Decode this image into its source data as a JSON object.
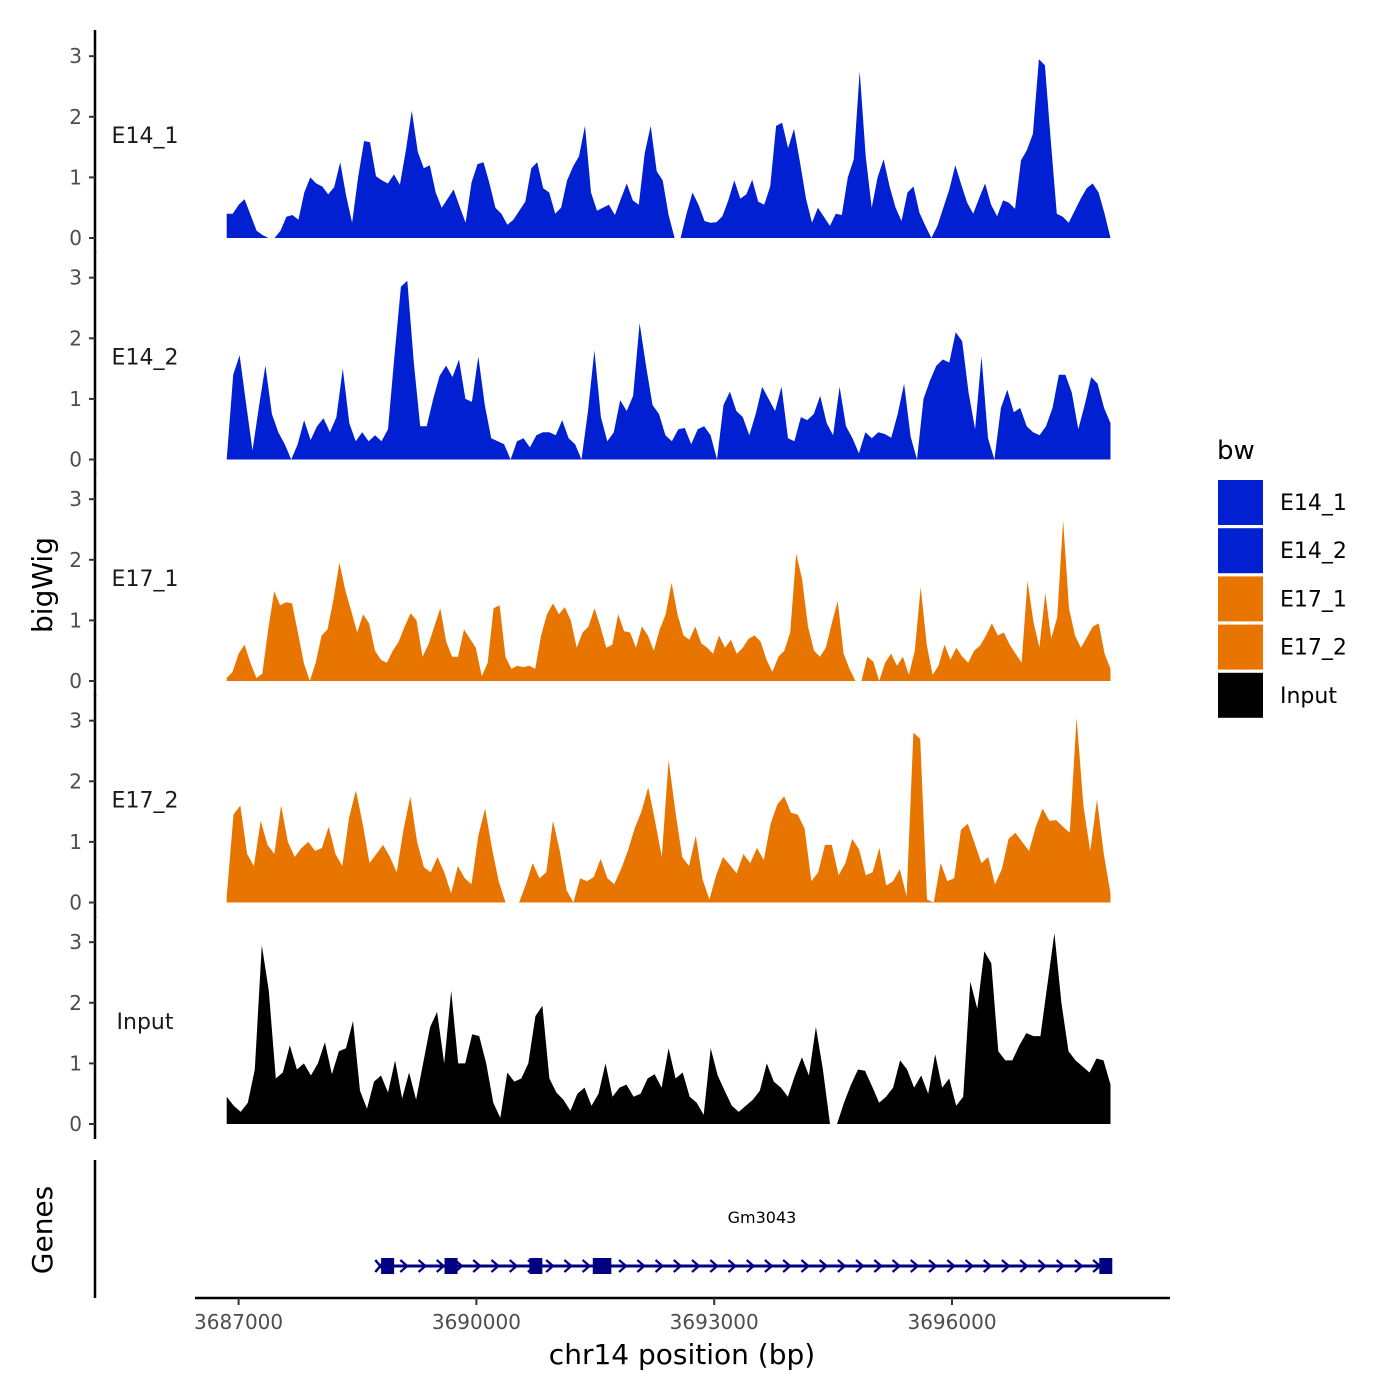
{
  "chart_data": {
    "type": "area",
    "title": "",
    "ylabel": "bigWig",
    "xlabel": "chr14 position (bp)",
    "ylim": [
      0,
      3.3
    ],
    "yticks": [
      0,
      1,
      2,
      3
    ],
    "xlim": [
      3686450,
      3698750
    ],
    "xticks": [
      3687000,
      3690000,
      3693000,
      3696000
    ],
    "x_start": 3686850,
    "x_end": 3698000,
    "legend": {
      "title": "bw",
      "position": "right",
      "entries": [
        {
          "label": "E14_1",
          "color": "#0020D2"
        },
        {
          "label": "E14_2",
          "color": "#0020D2"
        },
        {
          "label": "E17_1",
          "color": "#E87500"
        },
        {
          "label": "E17_2",
          "color": "#E87500"
        },
        {
          "label": "Input",
          "color": "#000000"
        }
      ]
    },
    "series": [
      {
        "name": "E14_1",
        "color": "#0020D2",
        "values": [
          0.4,
          0.4,
          0.55,
          0.64,
          0.38,
          0.12,
          0.05,
          0,
          0,
          0.12,
          0.35,
          0.38,
          0.3,
          0.75,
          1.0,
          0.9,
          0.85,
          0.72,
          0.84,
          1.25,
          0.7,
          0.25,
          1.0,
          1.6,
          1.58,
          1.02,
          0.95,
          0.9,
          1.05,
          0.88,
          1.45,
          2.1,
          1.42,
          1.15,
          1.2,
          0.75,
          0.5,
          0.65,
          0.8,
          0.52,
          0.25,
          0.92,
          1.22,
          1.25,
          0.9,
          0.5,
          0.4,
          0.22,
          0.3,
          0.45,
          0.6,
          1.15,
          1.25,
          0.82,
          0.75,
          0.4,
          0.5,
          0.95,
          1.18,
          1.35,
          1.85,
          0.75,
          0.45,
          0.5,
          0.55,
          0.38,
          0.65,
          0.9,
          0.62,
          0.55,
          1.4,
          1.85,
          1.1,
          0.95,
          0.38,
          0,
          0,
          0.4,
          0.75,
          0.55,
          0.28,
          0.25,
          0.26,
          0.36,
          0.62,
          0.95,
          0.65,
          0.72,
          0.96,
          0.6,
          0.55,
          0.85,
          1.85,
          1.9,
          1.48,
          1.8,
          1.25,
          0.65,
          0.25,
          0.5,
          0.35,
          0.2,
          0.4,
          0.38,
          1.0,
          1.3,
          2.75,
          1.35,
          0.5,
          1.0,
          1.3,
          0.85,
          0.5,
          0.28,
          0.75,
          0.85,
          0.42,
          0.2,
          0,
          0.2,
          0.5,
          0.8,
          1.2,
          0.88,
          0.58,
          0.4,
          0.66,
          0.9,
          0.55,
          0.36,
          0.62,
          0.58,
          0.48,
          1.28,
          1.45,
          1.72,
          2.95,
          2.85,
          1.6,
          0.4,
          0.35,
          0.25,
          0.45,
          0.65,
          0.82,
          0.9,
          0.75,
          0.4,
          0
        ]
      },
      {
        "name": "E14_2",
        "color": "#0020D2",
        "values": [
          0,
          1.4,
          1.72,
          0.92,
          0.15,
          0.88,
          1.55,
          0.75,
          0.45,
          0.25,
          0,
          0.25,
          0.65,
          0.32,
          0.55,
          0.68,
          0.45,
          0.7,
          1.5,
          0.6,
          0.3,
          0.45,
          0.3,
          0.4,
          0.3,
          0.5,
          1.7,
          2.85,
          2.95,
          1.6,
          0.55,
          0.55,
          1.0,
          1.38,
          1.55,
          1.36,
          1.65,
          1.0,
          0.95,
          1.7,
          0.9,
          0.35,
          0.3,
          0.25,
          0,
          0.3,
          0.35,
          0.2,
          0.4,
          0.45,
          0.45,
          0.4,
          0.65,
          0.35,
          0.25,
          0,
          0.8,
          1.8,
          0.7,
          0.3,
          0.45,
          0.98,
          0.8,
          1.05,
          2.25,
          1.55,
          0.9,
          0.75,
          0.4,
          0.3,
          0.5,
          0.52,
          0.25,
          0.5,
          0.55,
          0.4,
          0,
          0.9,
          1.12,
          0.8,
          0.7,
          0.4,
          0.75,
          1.2,
          1.0,
          0.8,
          1.2,
          0.35,
          0.3,
          0.7,
          0.65,
          0.75,
          1.05,
          0.6,
          0.4,
          1.2,
          0.55,
          0.35,
          0.1,
          0.45,
          0.35,
          0.45,
          0.42,
          0.36,
          0.75,
          1.25,
          0.38,
          0,
          1.0,
          1.3,
          1.55,
          1.65,
          1.6,
          2.1,
          1.95,
          1.1,
          0.5,
          1.7,
          0.35,
          0,
          0.85,
          1.15,
          0.78,
          0.85,
          0.55,
          0.45,
          0.4,
          0.55,
          0.85,
          1.4,
          1.4,
          1.1,
          0.5,
          0.9,
          1.36,
          1.25,
          0.85,
          0.6
        ]
      },
      {
        "name": "E17_1",
        "color": "#E87500",
        "values": [
          0.05,
          0.15,
          0.45,
          0.6,
          0.3,
          0.05,
          0.12,
          0.85,
          1.48,
          1.25,
          1.3,
          1.28,
          0.8,
          0.3,
          0,
          0.3,
          0.75,
          0.85,
          1.35,
          1.95,
          1.5,
          1.15,
          0.8,
          1.1,
          0.95,
          0.5,
          0.35,
          0.3,
          0.5,
          0.65,
          0.9,
          1.12,
          1.0,
          0.4,
          0.6,
          0.9,
          1.2,
          0.65,
          0.4,
          0.4,
          0.85,
          0.7,
          0.55,
          0.08,
          0.3,
          1.2,
          1.25,
          0.4,
          0.2,
          0.25,
          0.23,
          0.25,
          0.2,
          0.75,
          1.1,
          1.28,
          1.1,
          1.22,
          1.0,
          0.55,
          0.8,
          0.9,
          1.2,
          0.9,
          0.55,
          0.6,
          1.1,
          0.82,
          0.8,
          0.55,
          0.9,
          0.75,
          0.5,
          0.85,
          1.1,
          1.62,
          1.1,
          0.75,
          0.68,
          0.9,
          0.62,
          0.55,
          0.45,
          0.75,
          0.55,
          0.68,
          0.45,
          0.55,
          0.7,
          0.75,
          0.65,
          0.35,
          0.15,
          0.4,
          0.5,
          0.8,
          2.1,
          1.68,
          0.9,
          0.5,
          0.4,
          0.55,
          0.95,
          1.32,
          0.45,
          0.2,
          0,
          0,
          0.4,
          0.32,
          0,
          0.3,
          0.45,
          0.25,
          0.4,
          0.1,
          0.5,
          1.55,
          0.6,
          0.1,
          0.25,
          0.6,
          0.35,
          0.55,
          0.4,
          0.3,
          0.5,
          0.58,
          0.75,
          0.95,
          0.75,
          0.8,
          0.6,
          0.45,
          0.3,
          1.65,
          0.98,
          0.55,
          1.45,
          0.7,
          1.05,
          2.65,
          1.2,
          0.75,
          0.55,
          0.72,
          0.9,
          0.95,
          0.45,
          0.2
        ]
      },
      {
        "name": "E17_2",
        "color": "#E87500",
        "values": [
          0.1,
          1.45,
          1.6,
          0.8,
          0.6,
          1.35,
          0.95,
          0.8,
          1.6,
          1.0,
          0.75,
          0.9,
          1.0,
          0.85,
          0.9,
          1.25,
          0.8,
          0.6,
          1.4,
          1.85,
          1.3,
          0.65,
          0.8,
          0.95,
          0.75,
          0.5,
          1.2,
          1.75,
          1.0,
          0.58,
          0.5,
          0.75,
          0.5,
          0.15,
          0.6,
          0.4,
          0.3,
          1.1,
          1.55,
          0.9,
          0.35,
          0,
          0,
          0,
          0.3,
          0.65,
          0.4,
          0.5,
          1.35,
          0.85,
          0.2,
          0,
          0.4,
          0.35,
          0.42,
          0.72,
          0.4,
          0.3,
          0.55,
          0.85,
          1.22,
          1.5,
          1.9,
          1.35,
          0.75,
          2.35,
          1.5,
          0.75,
          0.6,
          1.1,
          0.38,
          0.05,
          0.45,
          0.75,
          0.62,
          0.48,
          0.8,
          0.65,
          0.9,
          0.7,
          1.3,
          1.62,
          1.75,
          1.48,
          1.45,
          1.22,
          0.35,
          0.5,
          0.95,
          0.95,
          0.45,
          0.65,
          1.05,
          0.88,
          0.45,
          0.5,
          0.9,
          0.28,
          0.35,
          0.55,
          0.1,
          2.8,
          2.7,
          0.05,
          0,
          0.65,
          0.35,
          0.4,
          1.2,
          1.3,
          0.98,
          0.65,
          0.75,
          0.3,
          0.55,
          1.05,
          1.15,
          1.0,
          0.85,
          1.25,
          1.55,
          1.35,
          1.36,
          1.25,
          1.15,
          3.05,
          1.6,
          0.85,
          1.7,
          0.8,
          0.15
        ]
      },
      {
        "name": "Input",
        "color": "#000000",
        "values": [
          0.45,
          0.3,
          0.2,
          0.35,
          0.9,
          2.95,
          2.2,
          0.75,
          0.85,
          1.3,
          0.9,
          1.0,
          0.8,
          1.0,
          1.35,
          0.82,
          1.2,
          1.25,
          1.7,
          0.55,
          0.25,
          0.7,
          0.8,
          0.52,
          1.05,
          0.42,
          0.85,
          0.4,
          1.0,
          1.6,
          1.85,
          1.0,
          2.2,
          1.0,
          1.0,
          1.48,
          1.45,
          1.0,
          0.35,
          0.1,
          0.85,
          0.7,
          0.75,
          1.0,
          1.78,
          1.95,
          0.75,
          0.52,
          0.4,
          0.22,
          0.5,
          0.6,
          0.3,
          0.5,
          1.0,
          0.45,
          0.6,
          0.65,
          0.45,
          0.5,
          0.75,
          0.82,
          0.6,
          1.25,
          0.75,
          0.85,
          0.45,
          0.35,
          0.15,
          1.25,
          0.8,
          0.55,
          0.3,
          0.2,
          0.3,
          0.4,
          0.55,
          1.0,
          0.7,
          0.6,
          0.45,
          0.8,
          1.1,
          0.8,
          1.6,
          0.9,
          0,
          0,
          0.35,
          0.65,
          0.9,
          0.88,
          0.62,
          0.35,
          0.45,
          0.6,
          1.05,
          0.9,
          0.6,
          0.8,
          0.5,
          1.15,
          0.6,
          0.75,
          0.3,
          0.45,
          2.35,
          1.9,
          2.85,
          2.65,
          1.2,
          1.05,
          1.05,
          1.3,
          1.5,
          1.45,
          1.45,
          2.3,
          3.15,
          2.0,
          1.2,
          1.05,
          0.95,
          0.85,
          1.08,
          1.05,
          0.65
        ]
      }
    ],
    "gene_track": {
      "label": "Genes",
      "gene_name": "Gm3043",
      "strand": "+",
      "start": 3688800,
      "end": 3697980,
      "exons": [
        3688880,
        3689680,
        3690750,
        3691550,
        3691620,
        3697940
      ],
      "color": "#000080"
    }
  }
}
